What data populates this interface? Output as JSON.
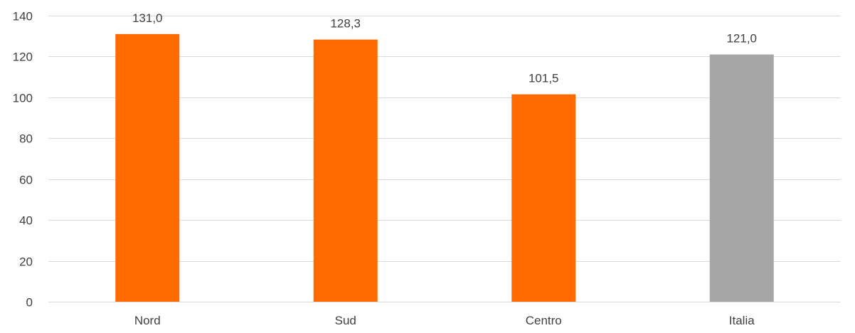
{
  "chart_data": {
    "type": "bar",
    "title": "",
    "xlabel": "",
    "ylabel": "",
    "categories": [
      "Nord",
      "Sud",
      "Centro",
      "Italia"
    ],
    "values": [
      131.0,
      128.3,
      101.5,
      121.0
    ],
    "data_labels": [
      "131,0",
      "128,3",
      "101,5",
      "121,0"
    ],
    "bar_colors": [
      "#FF6A00",
      "#FF6A00",
      "#FF6A00",
      "#A6A6A6"
    ],
    "ylim": [
      0,
      140
    ],
    "y_ticks": [
      0,
      20,
      40,
      60,
      80,
      100,
      120,
      140
    ],
    "grid": true,
    "legend": "none"
  }
}
